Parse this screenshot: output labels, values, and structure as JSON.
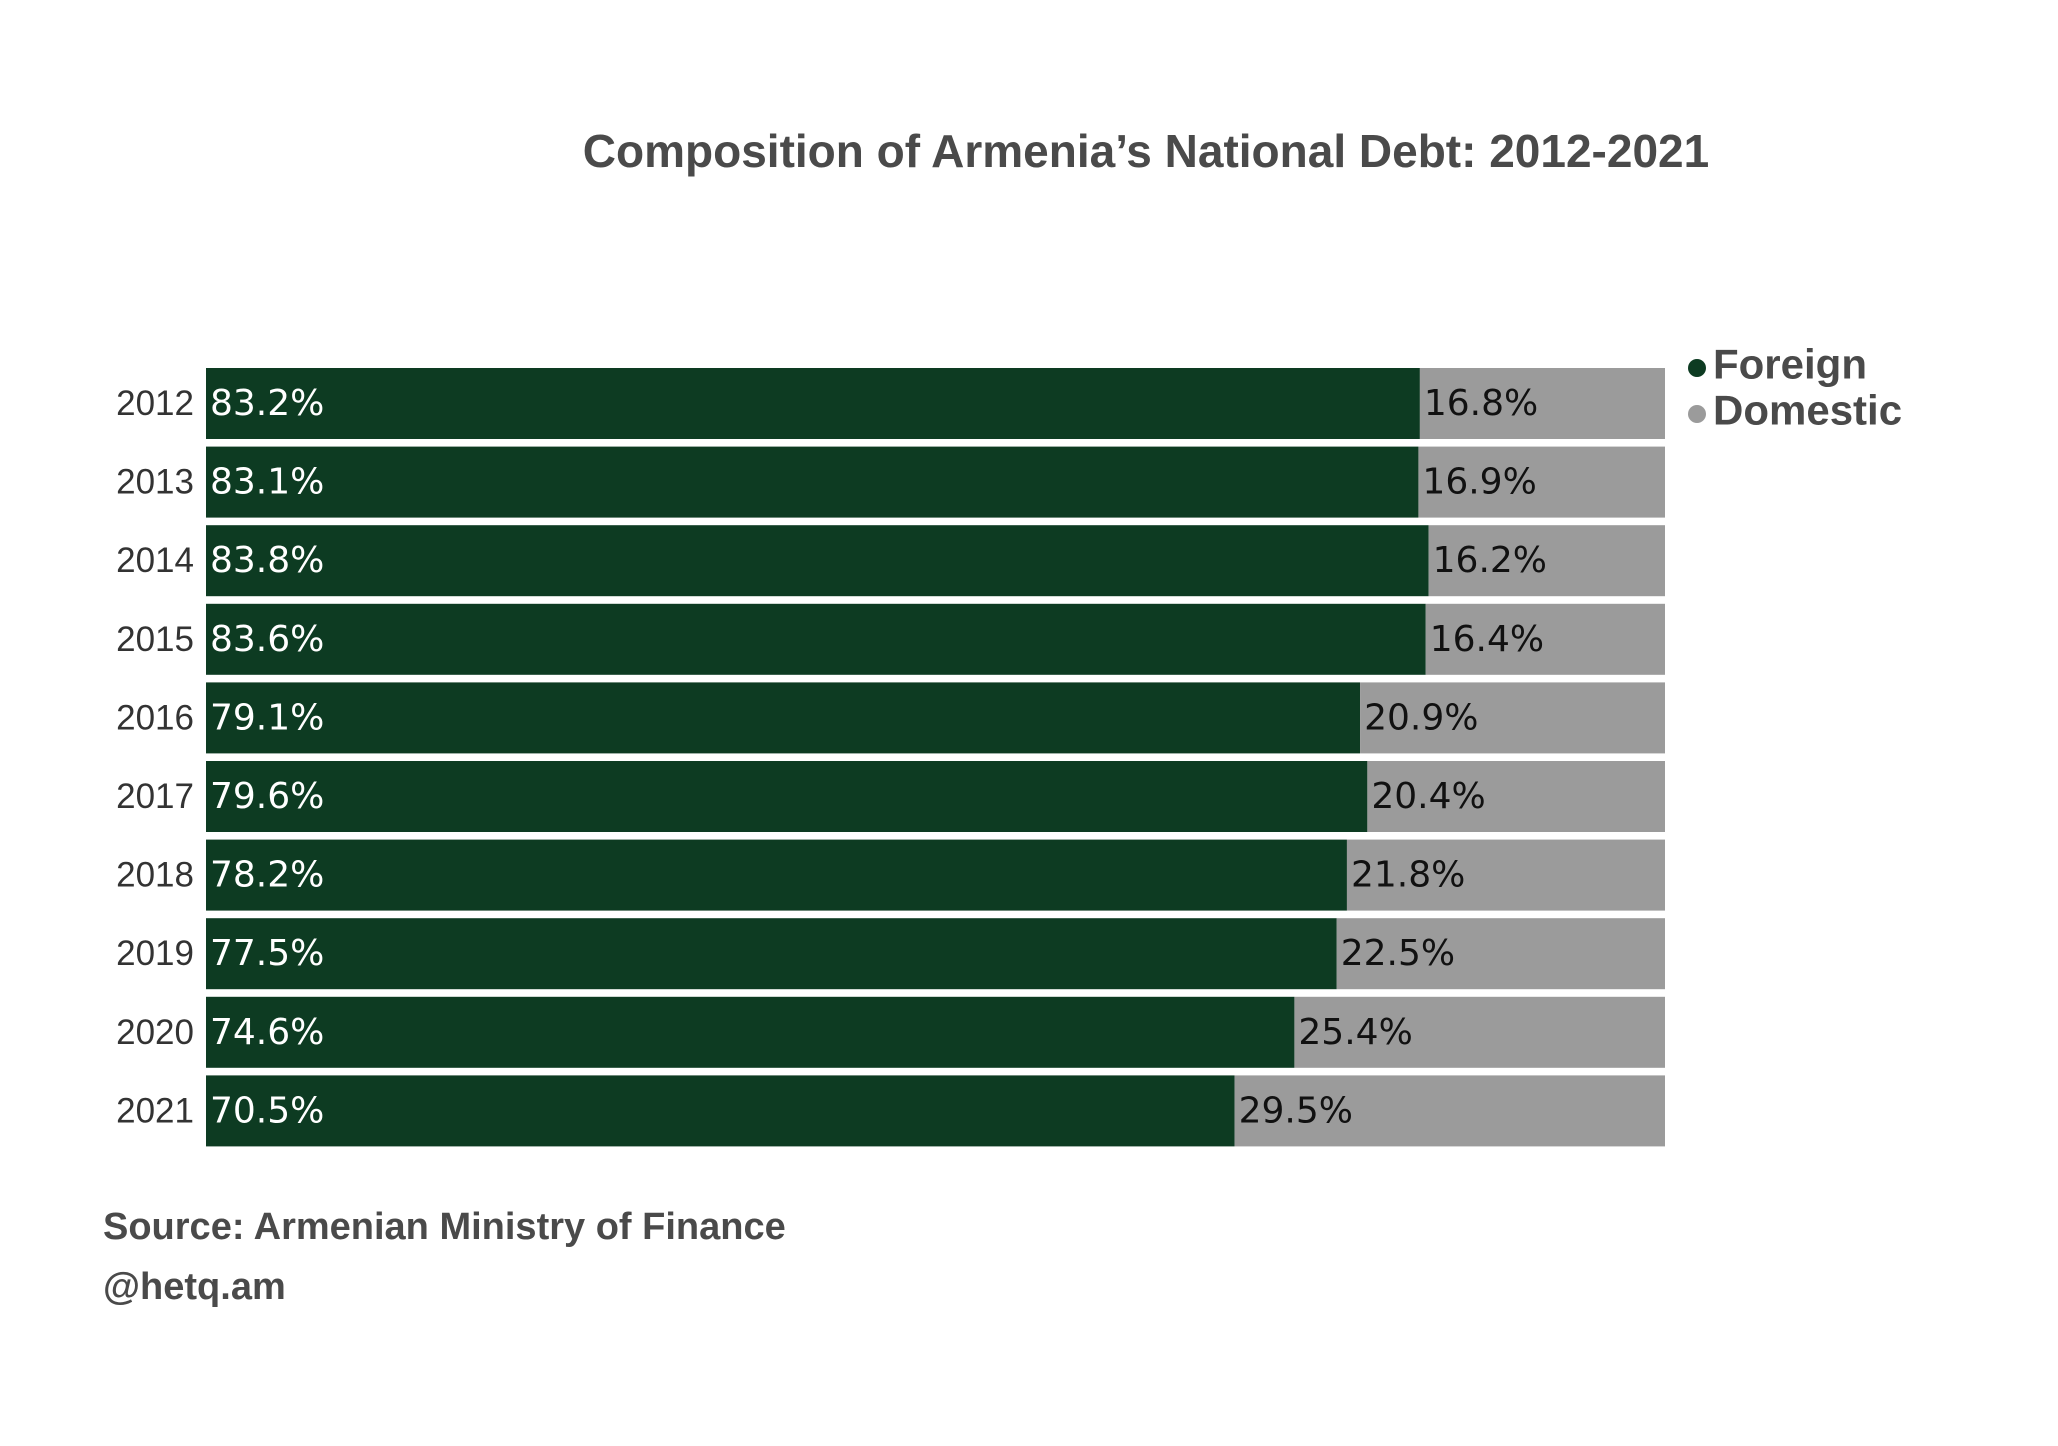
{
  "chart_data": {
    "type": "bar",
    "orientation": "horizontal",
    "stacked": true,
    "title": "Composition of Armenia’s National Debt: 2012-2021",
    "categories": [
      "2012",
      "2013",
      "2014",
      "2015",
      "2016",
      "2017",
      "2018",
      "2019",
      "2020",
      "2021"
    ],
    "series": [
      {
        "name": "Foreign",
        "color": "#0d3b22",
        "values": [
          83.2,
          83.1,
          83.8,
          83.6,
          79.1,
          79.6,
          78.2,
          77.5,
          74.6,
          70.5
        ],
        "labels": [
          "83.2%",
          "83.1%",
          "83.8%",
          "83.6%",
          "79.1%",
          "79.6%",
          "78.2%",
          "77.5%",
          "74.6%",
          "70.5%"
        ]
      },
      {
        "name": "Domestic",
        "color": "#9b9b9b",
        "values": [
          16.8,
          16.9,
          16.2,
          16.4,
          20.9,
          20.4,
          21.8,
          22.5,
          25.4,
          29.5
        ],
        "labels": [
          "16.8%",
          "16.9%",
          "16.2%",
          "16.4%",
          "20.9%",
          "20.4%",
          "21.8%",
          "22.5%",
          "25.4%",
          "29.5%"
        ]
      }
    ],
    "xlim": [
      0,
      100
    ],
    "grid": false,
    "legend_position": "top-right"
  },
  "source": "Source: Armenian Ministry of Finance",
  "credit": "@hetq.am"
}
